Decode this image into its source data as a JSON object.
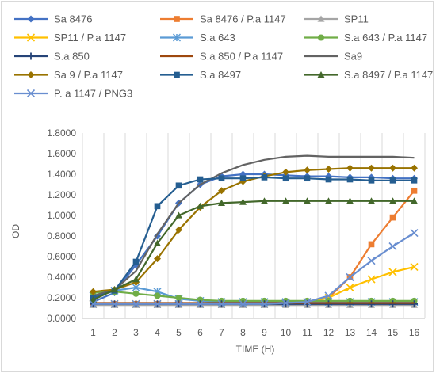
{
  "chart_data": {
    "type": "line",
    "title": "",
    "xlabel": "TIME  (H)",
    "ylabel": "OD",
    "x": [
      1,
      2,
      3,
      4,
      5,
      6,
      7,
      8,
      9,
      10,
      11,
      12,
      13,
      14,
      15,
      16
    ],
    "ylim": [
      0,
      1.8
    ],
    "yticks": [
      "0.0000",
      "0.2000",
      "0.4000",
      "0.6000",
      "0.8000",
      "1.0000",
      "1.2000",
      "1.4000",
      "1.6000",
      "1.8000"
    ],
    "xticks": [
      "1",
      "2",
      "3",
      "4",
      "5",
      "6",
      "7",
      "8",
      "9",
      "10",
      "11",
      "12",
      "13",
      "14",
      "15",
      "16"
    ],
    "grid": "vertical",
    "legend_position": "top",
    "series": [
      {
        "name": "Sa 8476",
        "color": "#4472c4",
        "marker": "diamond",
        "values": [
          0.16,
          0.25,
          0.52,
          0.8,
          1.12,
          1.3,
          1.38,
          1.4,
          1.4,
          1.39,
          1.38,
          1.38,
          1.37,
          1.37,
          1.36,
          1.36
        ]
      },
      {
        "name": "Sa 8476 / P.a 1147",
        "color": "#ed7d31",
        "marker": "square",
        "values": [
          0.14,
          0.14,
          0.14,
          0.14,
          0.14,
          0.14,
          0.14,
          0.14,
          0.14,
          0.15,
          0.16,
          0.2,
          0.4,
          0.72,
          0.98,
          1.24
        ]
      },
      {
        "name": "SP11",
        "color": "#a5a5a5",
        "marker": "triangle",
        "values": [
          0.13,
          0.13,
          0.13,
          0.13,
          0.13,
          0.13,
          0.13,
          0.13,
          0.13,
          0.13,
          0.13,
          0.13,
          0.13,
          0.13,
          0.13,
          0.13
        ]
      },
      {
        "name": "SP11 / P.a 1147",
        "color": "#ffc000",
        "marker": "x",
        "values": [
          0.14,
          0.14,
          0.14,
          0.14,
          0.14,
          0.14,
          0.14,
          0.14,
          0.14,
          0.15,
          0.16,
          0.2,
          0.3,
          0.38,
          0.45,
          0.5
        ]
      },
      {
        "name": "S.a 643",
        "color": "#5b9bd5",
        "marker": "star",
        "values": [
          0.22,
          0.27,
          0.3,
          0.26,
          0.19,
          0.17,
          0.16,
          0.16,
          0.16,
          0.16,
          0.16,
          0.16,
          0.16,
          0.16,
          0.16,
          0.16
        ]
      },
      {
        "name": "S.a 643 / P.a 1147",
        "color": "#70ad47",
        "marker": "circle",
        "values": [
          0.25,
          0.26,
          0.24,
          0.22,
          0.2,
          0.18,
          0.17,
          0.17,
          0.17,
          0.17,
          0.17,
          0.17,
          0.17,
          0.17,
          0.17,
          0.17
        ]
      },
      {
        "name": "S.a 850",
        "color": "#264478",
        "marker": "plus",
        "values": [
          0.14,
          0.14,
          0.14,
          0.14,
          0.14,
          0.14,
          0.14,
          0.14,
          0.14,
          0.14,
          0.14,
          0.14,
          0.14,
          0.14,
          0.14,
          0.14
        ]
      },
      {
        "name": "S.a 850 / P.a 1147",
        "color": "#9e480e",
        "marker": "none",
        "values": [
          0.15,
          0.15,
          0.15,
          0.15,
          0.15,
          0.15,
          0.15,
          0.15,
          0.15,
          0.15,
          0.15,
          0.15,
          0.15,
          0.15,
          0.15,
          0.15
        ]
      },
      {
        "name": "Sa9",
        "color": "#636363",
        "marker": "none",
        "values": [
          0.22,
          0.28,
          0.46,
          0.82,
          1.12,
          1.3,
          1.41,
          1.49,
          1.54,
          1.57,
          1.58,
          1.57,
          1.57,
          1.57,
          1.57,
          1.56
        ]
      },
      {
        "name": "Sa 9 / P.a 1147",
        "color": "#997300",
        "marker": "diamond",
        "values": [
          0.26,
          0.28,
          0.35,
          0.58,
          0.86,
          1.08,
          1.24,
          1.33,
          1.38,
          1.42,
          1.44,
          1.45,
          1.46,
          1.46,
          1.46,
          1.46
        ]
      },
      {
        "name": "S.a 8497",
        "color": "#255e91",
        "marker": "square",
        "values": [
          0.2,
          0.27,
          0.55,
          1.09,
          1.29,
          1.35,
          1.36,
          1.36,
          1.37,
          1.36,
          1.36,
          1.35,
          1.35,
          1.34,
          1.34,
          1.34
        ]
      },
      {
        "name": "S.a 8497 / P.a 1147",
        "color": "#43682b",
        "marker": "triangle",
        "values": [
          0.18,
          0.28,
          0.38,
          0.73,
          1.0,
          1.09,
          1.12,
          1.13,
          1.14,
          1.14,
          1.14,
          1.14,
          1.14,
          1.14,
          1.14,
          1.14
        ]
      },
      {
        "name": "P. a 1147 / PNG3",
        "color": "#698ed0",
        "marker": "x",
        "values": [
          0.14,
          0.14,
          0.14,
          0.14,
          0.14,
          0.14,
          0.14,
          0.14,
          0.14,
          0.15,
          0.16,
          0.22,
          0.4,
          0.56,
          0.7,
          0.83
        ]
      }
    ]
  }
}
